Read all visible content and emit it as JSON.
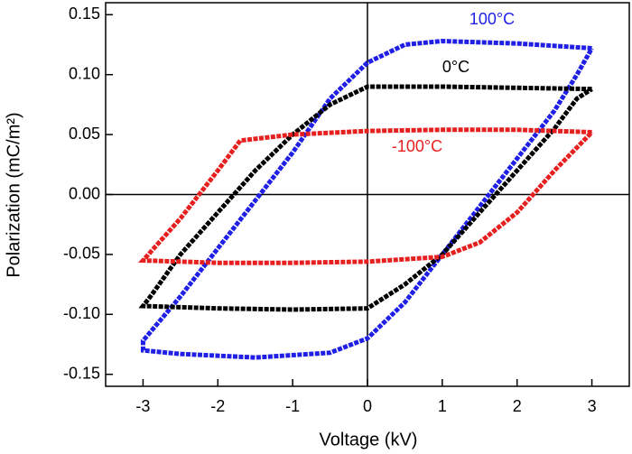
{
  "chart_data": {
    "type": "line",
    "x_label": "Voltage (kV)",
    "y_label": "Polarization (mC/m²)",
    "xlim": [
      -3.5,
      3.5
    ],
    "ylim": [
      -0.16,
      0.16
    ],
    "xticks": [
      -3,
      -2,
      -1,
      0,
      1,
      2,
      3
    ],
    "yticks": [
      0.15,
      {
        "value": 0.1,
        "label": "0.10"
      },
      0.05,
      {
        "value": 0,
        "label": "0.00"
      },
      -0.05,
      {
        "value": -0.1,
        "label": "-0.10"
      },
      -0.15
    ],
    "zero_lines": true,
    "series": [
      {
        "name": "100°C",
        "color": "#1f1fe6",
        "x": [
          3,
          2,
          1,
          0.5,
          0,
          -0.5,
          -1,
          -1.5,
          -2,
          -2.5,
          -3,
          -3,
          -2.5,
          -1.5,
          -0.5,
          0,
          0.5,
          1,
          1.5,
          2,
          2.5,
          2.8,
          3
        ],
        "values": [
          0.122,
          0.126,
          0.128,
          0.125,
          0.11,
          0.08,
          0.035,
          -0.005,
          -0.045,
          -0.085,
          -0.122,
          -0.13,
          -0.133,
          -0.136,
          -0.132,
          -0.12,
          -0.09,
          -0.05,
          -0.01,
          0.03,
          0.07,
          0.1,
          0.122
        ]
      },
      {
        "name": "0°C",
        "color": "#000000",
        "x": [
          3,
          2,
          1,
          0,
          -0.5,
          -1,
          -1.5,
          -2,
          -2.5,
          -2.9,
          -3,
          -2,
          -1,
          0,
          0.5,
          1,
          1.5,
          2,
          2.5,
          2.8,
          3
        ],
        "values": [
          0.088,
          0.089,
          0.09,
          0.09,
          0.075,
          0.05,
          0.02,
          -0.015,
          -0.05,
          -0.085,
          -0.093,
          -0.095,
          -0.096,
          -0.095,
          -0.075,
          -0.05,
          -0.015,
          0.02,
          0.055,
          0.08,
          0.088
        ]
      },
      {
        "name": "-100°C",
        "color": "#e61f1f",
        "x": [
          3,
          2,
          1,
          0,
          -1,
          -1.7,
          -2,
          -2.5,
          -3,
          -2,
          -1,
          0,
          1,
          1.5,
          2,
          2.5,
          3
        ],
        "values": [
          0.052,
          0.054,
          0.054,
          0.053,
          0.05,
          0.045,
          0.02,
          -0.02,
          -0.055,
          -0.057,
          -0.057,
          -0.056,
          -0.052,
          -0.04,
          -0.015,
          0.02,
          0.052
        ]
      }
    ]
  }
}
